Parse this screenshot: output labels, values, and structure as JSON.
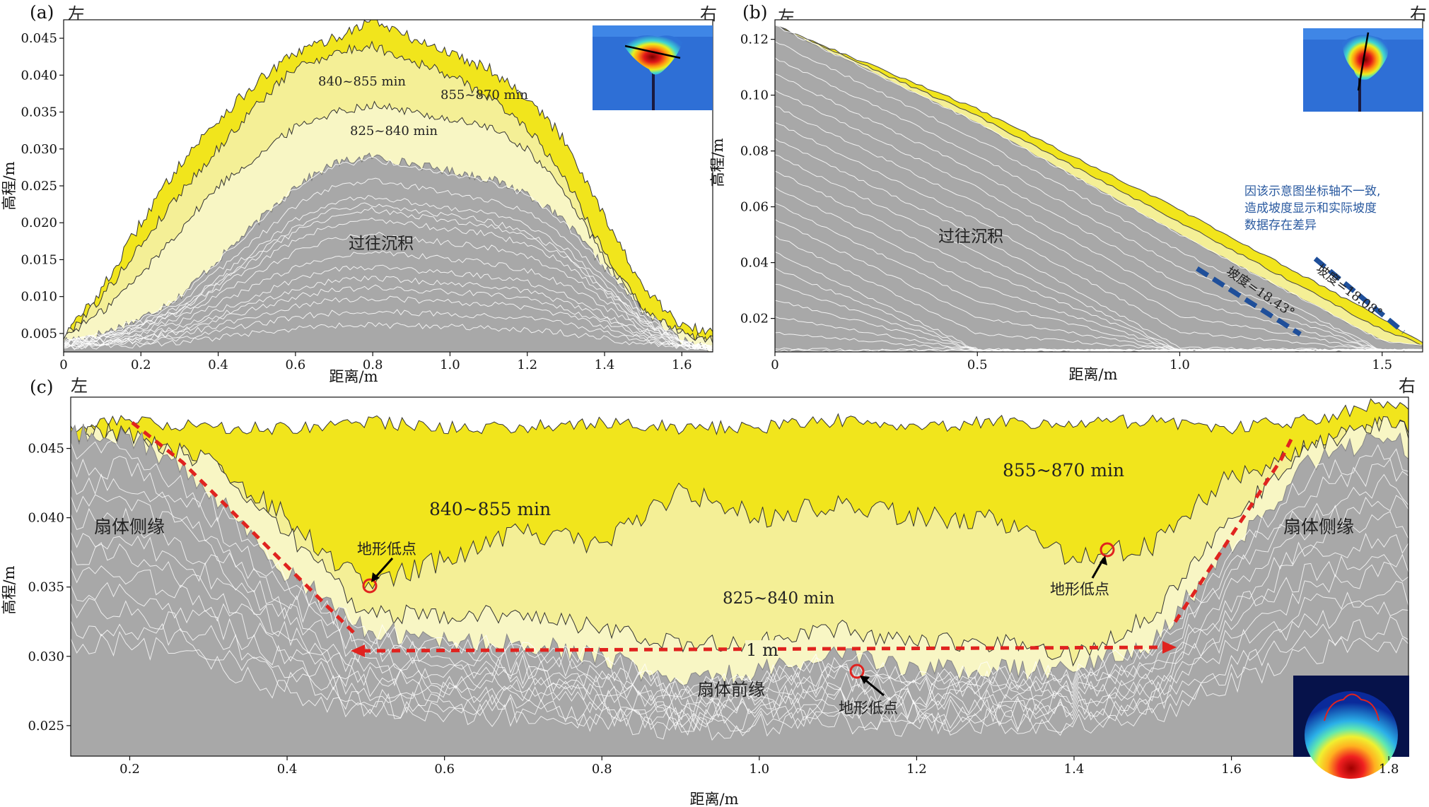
{
  "colors": {
    "past": "#a8a8a8",
    "band_825_840": "#f8f6c4",
    "band_840_855": "#f4ef96",
    "band_855_870": "#f1e51c",
    "red_marker": "#e0231f",
    "blue_marker": "#1f4f9a",
    "note_text": "#2a5aa0"
  },
  "panel_a": {
    "label": "(a)",
    "left": "左",
    "right": "右",
    "ylabel": "高程/m",
    "xlabel": "距离/m",
    "xticks": [
      "0",
      "0.2",
      "0.4",
      "0.6",
      "0.8",
      "1.0",
      "1.2",
      "1.4",
      "1.6"
    ],
    "yticks": [
      "0.005",
      "0.010",
      "0.015",
      "0.020",
      "0.025",
      "0.030",
      "0.035",
      "0.040",
      "0.045"
    ],
    "labels": {
      "b840": "840~855 min",
      "b855": "855~870 min",
      "b825": "825~840 min",
      "past": "过往沉积"
    },
    "inset": "elevation-map-thumbnail"
  },
  "panel_b": {
    "label": "(b)",
    "left": "左",
    "right": "右",
    "ylabel": "高程/m",
    "xlabel": "距离/m",
    "xticks": [
      "0",
      "0.5",
      "1.0",
      "1.5"
    ],
    "yticks": [
      "0.02",
      "0.04",
      "0.06",
      "0.08",
      "0.10",
      "0.12"
    ],
    "labels": {
      "past": "过往沉积"
    },
    "note": [
      "因该示意图坐标轴不一致,",
      "造成坡度显示和实际坡度",
      "数据存在差异"
    ],
    "slope_1": "坡度=18.43°",
    "slope_2": "坡度=18.08°",
    "inset": "elevation-map-thumbnail"
  },
  "panel_c": {
    "label": "(c)",
    "left": "左",
    "right": "右",
    "ylabel": "高程/m",
    "xlabel": "距离/m",
    "xticks": [
      "0.2",
      "0.4",
      "0.6",
      "0.8",
      "1.0",
      "1.2",
      "1.4",
      "1.6",
      "1.8"
    ],
    "yticks": [
      "0.025",
      "0.030",
      "0.035",
      "0.040",
      "0.045"
    ],
    "labels": {
      "b855": "855~870 min",
      "b840": "840~855 min",
      "b825": "825~840 min",
      "side_left": "扇体侧缘",
      "side_right": "扇体侧缘",
      "front": "扇体前缘",
      "low1": "地形低点",
      "low2": "地形低点",
      "low3": "地形低点",
      "width": "1 m"
    },
    "inset": "elevation-map-thumbnail"
  },
  "chart_data": [
    {
      "type": "area",
      "panel": "a",
      "xlabel": "距离/m",
      "ylabel": "高程/m",
      "xlim": [
        0,
        1.68
      ],
      "ylim": [
        0.0025,
        0.0475
      ],
      "x": [
        0.0,
        0.1,
        0.2,
        0.3,
        0.4,
        0.5,
        0.6,
        0.7,
        0.8,
        0.9,
        1.0,
        1.1,
        1.2,
        1.3,
        1.4,
        1.5,
        1.6,
        1.68
      ],
      "series": [
        {
          "name": "过往沉积",
          "values": [
            0.004,
            0.005,
            0.007,
            0.01,
            0.015,
            0.02,
            0.025,
            0.028,
            0.029,
            0.028,
            0.027,
            0.026,
            0.024,
            0.02,
            0.014,
            0.008,
            0.004,
            0.003
          ]
        },
        {
          "name": "825~840 min",
          "values": [
            0.0045,
            0.008,
            0.013,
            0.019,
            0.025,
            0.029,
            0.033,
            0.035,
            0.036,
            0.035,
            0.034,
            0.033,
            0.03,
            0.024,
            0.015,
            0.008,
            0.005,
            0.004
          ]
        },
        {
          "name": "840~855 min",
          "values": [
            0.0045,
            0.01,
            0.017,
            0.024,
            0.03,
            0.036,
            0.041,
            0.043,
            0.044,
            0.042,
            0.04,
            0.037,
            0.033,
            0.026,
            0.016,
            0.008,
            0.005,
            0.004
          ]
        },
        {
          "name": "855~870 min",
          "values": [
            0.0045,
            0.011,
            0.02,
            0.028,
            0.034,
            0.039,
            0.043,
            0.045,
            0.0475,
            0.045,
            0.043,
            0.041,
            0.037,
            0.031,
            0.021,
            0.011,
            0.006,
            0.005
          ]
        }
      ]
    },
    {
      "type": "area",
      "panel": "b",
      "xlabel": "距离/m",
      "ylabel": "高程/m",
      "xlim": [
        0,
        1.6
      ],
      "ylim": [
        0.008,
        0.127
      ],
      "x": [
        0.0,
        0.5,
        1.0,
        1.5,
        1.6
      ],
      "series": [
        {
          "name": "过往沉积",
          "values": [
            0.125,
            0.09,
            0.05,
            0.012,
            0.01
          ]
        },
        {
          "name": "855~870 min",
          "values": [
            0.125,
            0.095,
            0.059,
            0.02,
            0.011
          ]
        }
      ],
      "annotations": [
        "坡度=18.43°",
        "坡度=18.08°"
      ]
    },
    {
      "type": "area",
      "panel": "c",
      "xlabel": "距离/m",
      "ylabel": "高程/m",
      "xlim": [
        0.125,
        1.825
      ],
      "ylim": [
        0.0228,
        0.0487
      ],
      "x": [
        0.125,
        0.2,
        0.3,
        0.4,
        0.5,
        0.6,
        0.7,
        0.8,
        0.9,
        1.0,
        1.1,
        1.2,
        1.3,
        1.4,
        1.5,
        1.6,
        1.7,
        1.8,
        1.825
      ],
      "series": [
        {
          "name": "过往沉积",
          "values": [
            0.046,
            0.046,
            0.042,
            0.036,
            0.032,
            0.031,
            0.031,
            0.03,
            0.028,
            0.029,
            0.03,
            0.029,
            0.029,
            0.029,
            0.031,
            0.038,
            0.044,
            0.046,
            0.045
          ]
        },
        {
          "name": "825~840 min",
          "values": [
            0.046,
            0.046,
            0.044,
            0.039,
            0.033,
            0.033,
            0.033,
            0.032,
            0.031,
            0.031,
            0.032,
            0.031,
            0.031,
            0.03,
            0.033,
            0.04,
            0.045,
            0.047,
            0.046
          ]
        },
        {
          "name": "840~855 min",
          "values": [
            0.046,
            0.046,
            0.044,
            0.04,
            0.035,
            0.037,
            0.039,
            0.038,
            0.042,
            0.04,
            0.041,
            0.04,
            0.04,
            0.037,
            0.038,
            0.043,
            0.045,
            0.047,
            0.046
          ]
        },
        {
          "name": "855~870 min",
          "values": [
            0.0465,
            0.047,
            0.0465,
            0.0465,
            0.047,
            0.0465,
            0.0465,
            0.0468,
            0.0465,
            0.0465,
            0.047,
            0.0465,
            0.047,
            0.0468,
            0.047,
            0.0465,
            0.047,
            0.0485,
            0.0475
          ]
        }
      ],
      "annotations": [
        "扇体侧缘",
        "扇体前缘",
        "地形低点",
        "1 m"
      ]
    }
  ]
}
